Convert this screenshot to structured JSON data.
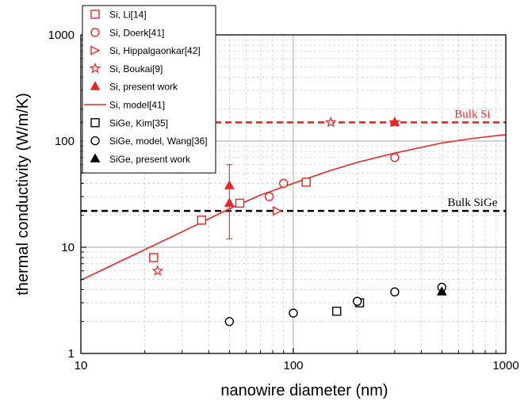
{
  "chart_data": {
    "type": "scatter",
    "xlabel": "nanowire diameter (nm)",
    "ylabel": "thermal conductivity (W/m/K)",
    "xscale": "log",
    "yscale": "log",
    "xlim": [
      10,
      1000
    ],
    "ylim": [
      1,
      1000
    ],
    "x_ticks": [
      {
        "v": 10,
        "label": "10"
      },
      {
        "v": 100,
        "label": "100"
      },
      {
        "v": 1000,
        "label": "1000"
      }
    ],
    "y_ticks": [
      {
        "v": 1,
        "label": "1"
      },
      {
        "v": 10,
        "label": "10"
      },
      {
        "v": 100,
        "label": "100"
      },
      {
        "v": 1000,
        "label": "1000"
      }
    ],
    "grid": true,
    "legend_position": "top-left",
    "colors": {
      "si": "#e8262a",
      "sige": "#000000",
      "grid_major": "#a8a8a8",
      "grid_minor": "#cccccc"
    },
    "series": [
      {
        "name": "Si, Li[14]",
        "marker": "square-open",
        "color": "#e8262a",
        "points": [
          {
            "x": 22,
            "y": 8
          },
          {
            "x": 37,
            "y": 18
          },
          {
            "x": 56,
            "y": 26
          },
          {
            "x": 115,
            "y": 41
          }
        ]
      },
      {
        "name": "Si, Doerk[41]",
        "marker": "circle-open",
        "color": "#e8262a",
        "points": [
          {
            "x": 77,
            "y": 30
          },
          {
            "x": 90,
            "y": 40
          },
          {
            "x": 300,
            "y": 70
          }
        ]
      },
      {
        "name": "Si, Hippalgaonkar[42]",
        "marker": "triangle-right-open",
        "color": "#e8262a",
        "points": [
          {
            "x": 84,
            "y": 22
          }
        ]
      },
      {
        "name": "Si, Boukai[9]",
        "marker": "star-open",
        "color": "#e8262a",
        "points": [
          {
            "x": 23,
            "y": 6
          },
          {
            "x": 150,
            "y": 150
          },
          {
            "x": 300,
            "y": 150
          }
        ]
      },
      {
        "name": "Si, present work",
        "marker": "triangle-up-filled",
        "color": "#e8262a",
        "points": [
          {
            "x": 50,
            "y": 38
          },
          {
            "x": 50,
            "y": 26
          },
          {
            "x": 300,
            "y": 150
          }
        ],
        "error_bars": [
          {
            "x": 50,
            "low": 12,
            "high": 60
          }
        ]
      },
      {
        "name": "Si, model[41]",
        "marker": "line",
        "color": "#e8262a",
        "points": [
          {
            "x": 10,
            "y": 4.9
          },
          {
            "x": 20,
            "y": 9.5
          },
          {
            "x": 30,
            "y": 14
          },
          {
            "x": 50,
            "y": 23
          },
          {
            "x": 70,
            "y": 31
          },
          {
            "x": 100,
            "y": 40
          },
          {
            "x": 150,
            "y": 53
          },
          {
            "x": 200,
            "y": 63
          },
          {
            "x": 300,
            "y": 77
          },
          {
            "x": 500,
            "y": 96
          },
          {
            "x": 700,
            "y": 106
          },
          {
            "x": 1000,
            "y": 115
          }
        ]
      },
      {
        "name": "SiGe, Kim[35]",
        "marker": "square-open",
        "color": "#000000",
        "points": [
          {
            "x": 160,
            "y": 2.5
          },
          {
            "x": 205,
            "y": 3.0
          }
        ]
      },
      {
        "name": "SiGe, model, Wang[36]",
        "marker": "circle-open",
        "color": "#000000",
        "points": [
          {
            "x": 50,
            "y": 2.0
          },
          {
            "x": 100,
            "y": 2.4
          },
          {
            "x": 200,
            "y": 3.1
          },
          {
            "x": 300,
            "y": 3.8
          },
          {
            "x": 500,
            "y": 4.2
          }
        ]
      },
      {
        "name": "SiGe, present work",
        "marker": "triangle-up-filled",
        "color": "#000000",
        "points": [
          {
            "x": 500,
            "y": 3.8
          }
        ]
      }
    ],
    "reference_lines": [
      {
        "label": "Bulk Si",
        "y": 150,
        "color": "#e8262a"
      },
      {
        "label": "Bulk SiGe",
        "y": 22,
        "color": "#000000"
      }
    ]
  }
}
